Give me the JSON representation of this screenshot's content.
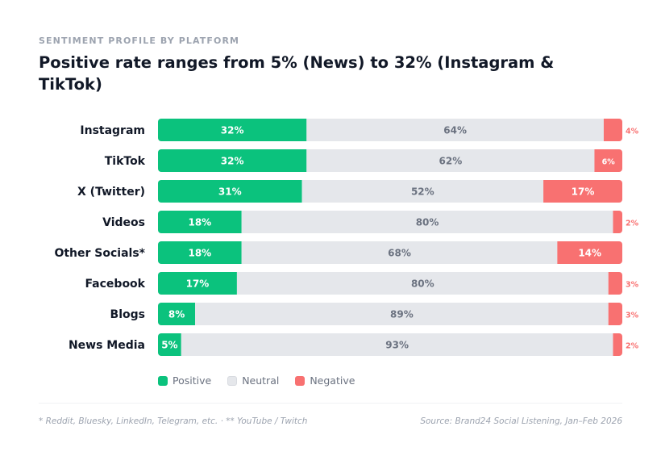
{
  "header": {
    "eyebrow": "SENTIMENT PROFILE BY PLATFORM",
    "title": "Positive rate ranges from 5% (News) to 32% (Instagram & TikTok)"
  },
  "colors": {
    "positive": "#0bc27d",
    "neutral": "#e5e7eb",
    "negative": "#f87171",
    "category_text": "#111827",
    "neutral_label": "#6b7280"
  },
  "chart_data": {
    "type": "bar",
    "orientation": "horizontal",
    "stacked": true,
    "unit": "%",
    "categories": [
      "Instagram",
      "TikTok",
      "X (Twitter)",
      "Videos",
      "Other Socials*",
      "Facebook",
      "Blogs",
      "News Media"
    ],
    "series": [
      {
        "name": "Positive",
        "key": "positive",
        "values": [
          32,
          32,
          31,
          18,
          18,
          17,
          8,
          5
        ]
      },
      {
        "name": "Neutral",
        "key": "neutral",
        "values": [
          64,
          62,
          52,
          80,
          68,
          80,
          89,
          93
        ]
      },
      {
        "name": "Negative",
        "key": "negative",
        "values": [
          4,
          6,
          17,
          2,
          14,
          3,
          3,
          2
        ]
      }
    ],
    "xlim": [
      0,
      100
    ],
    "legend": [
      "Positive",
      "Neutral",
      "Negative"
    ],
    "legend_position": "bottom-left"
  },
  "footer": {
    "note": "* Reddit, Bluesky, LinkedIn, Telegram, etc.  ·  ** YouTube / Twitch",
    "source": "Source: Brand24 Social Listening, Jan–Feb 2026"
  }
}
